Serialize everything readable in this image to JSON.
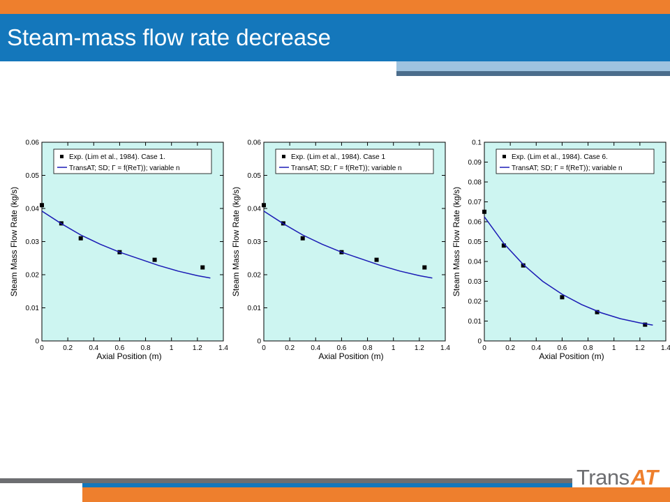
{
  "slide": {
    "title": "Steam-mass flow rate decrease",
    "logo": {
      "text_main": "Trans",
      "text_accent": "AT"
    },
    "colors": {
      "orange": "#ee7f2d",
      "blue": "#1477bb",
      "gray": "#6d6e71",
      "plot_bg": "#cdf5f1",
      "line": "#1a1ab5"
    }
  },
  "chart_data": [
    {
      "type": "scatter",
      "xlabel": "Axial Position (m)",
      "ylabel": "Steam Mass Flow Rate (kg/s)",
      "xlim": [
        0,
        1.4
      ],
      "ylim": [
        0,
        0.06
      ],
      "xticks": [
        "0",
        "0.2",
        "0.4",
        "0.6",
        "0.8",
        "1",
        "1.2",
        "1.4"
      ],
      "yticks": [
        "0",
        "0.01",
        "0.02",
        "0.03",
        "0.04",
        "0.05",
        "0.06"
      ],
      "legend": [
        "Exp. (Lim et al., 1984). Case 1.",
        "TransAT; SD; Γ = f(ReT)); variable n"
      ],
      "legend_position": "top",
      "series": [
        {
          "name": "Exp. (Lim et al., 1984). Case 1.",
          "style": "markers",
          "x": [
            0,
            0.15,
            0.3,
            0.6,
            0.87,
            1.24
          ],
          "y": [
            0.041,
            0.0355,
            0.031,
            0.0268,
            0.0245,
            0.0222
          ]
        },
        {
          "name": "TransAT; SD; Γ = f(ReT)); variable n",
          "style": "line",
          "x": [
            0,
            0.15,
            0.3,
            0.45,
            0.6,
            0.75,
            0.9,
            1.05,
            1.2,
            1.3
          ],
          "y": [
            0.0392,
            0.0354,
            0.032,
            0.0292,
            0.0268,
            0.0248,
            0.0228,
            0.0211,
            0.0197,
            0.019
          ]
        }
      ]
    },
    {
      "type": "scatter",
      "xlabel": "Axial Position (m)",
      "ylabel": "Steam Mass Flow Rate (kg/s)",
      "xlim": [
        0,
        1.4
      ],
      "ylim": [
        0,
        0.06
      ],
      "xticks": [
        "0",
        "0.2",
        "0.4",
        "0.6",
        "0.8",
        "1",
        "1.2",
        "1.4"
      ],
      "yticks": [
        "0",
        "0.01",
        "0.02",
        "0.03",
        "0.04",
        "0.05",
        "0.06"
      ],
      "legend": [
        "Exp. (Lim et al., 1984). Case 1",
        "TransAT; SD; Γ = f(ReT)); variable n"
      ],
      "legend_position": "top",
      "series": [
        {
          "name": "Exp. (Lim et al., 1984). Case 1",
          "style": "markers",
          "x": [
            0,
            0.15,
            0.3,
            0.6,
            0.87,
            1.24
          ],
          "y": [
            0.041,
            0.0355,
            0.031,
            0.0268,
            0.0245,
            0.0222
          ]
        },
        {
          "name": "TransAT; SD; Γ = f(ReT)); variable n",
          "style": "line",
          "x": [
            0,
            0.15,
            0.3,
            0.45,
            0.6,
            0.75,
            0.9,
            1.05,
            1.2,
            1.3
          ],
          "y": [
            0.0392,
            0.0354,
            0.032,
            0.0292,
            0.0268,
            0.0248,
            0.0228,
            0.0211,
            0.0197,
            0.019
          ]
        }
      ]
    },
    {
      "type": "scatter",
      "xlabel": "Axial Position (m)",
      "ylabel": "Steam Mass Flow Rate (kg/s)",
      "xlim": [
        0,
        1.4
      ],
      "ylim": [
        0,
        0.1
      ],
      "xticks": [
        "0",
        "0.2",
        "0.4",
        "0.6",
        "0.8",
        "1",
        "1.2",
        "1.4"
      ],
      "yticks": [
        "0",
        "0.01",
        "0.02",
        "0.03",
        "0.04",
        "0.05",
        "0.06",
        "0.07",
        "0.08",
        "0.09",
        "0.1"
      ],
      "legend": [
        "Exp. (Lim et al., 1984). Case 6.",
        "TransAT; SD; Γ = f(ReT)); variable n"
      ],
      "legend_position": "top",
      "series": [
        {
          "name": "Exp. (Lim et al., 1984). Case 6.",
          "style": "markers",
          "x": [
            0,
            0.15,
            0.3,
            0.6,
            0.87,
            1.24
          ],
          "y": [
            0.065,
            0.048,
            0.038,
            0.022,
            0.0145,
            0.0082
          ]
        },
        {
          "name": "TransAT; SD; Γ = f(ReT)); variable n",
          "style": "line",
          "x": [
            0,
            0.15,
            0.3,
            0.45,
            0.6,
            0.75,
            0.9,
            1.05,
            1.2,
            1.3
          ],
          "y": [
            0.0625,
            0.049,
            0.0385,
            0.03,
            0.0235,
            0.0183,
            0.0142,
            0.0112,
            0.0091,
            0.008
          ]
        }
      ]
    }
  ]
}
